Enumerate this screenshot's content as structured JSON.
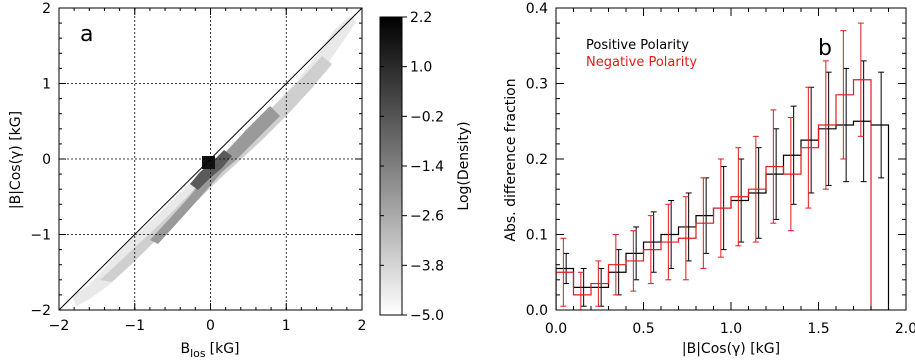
{
  "chart_data": [
    {
      "type": "heatmap",
      "panel_label": "a",
      "xlabel_main": "B",
      "xlabel_sub": "los",
      "xlabel_unit": "[kG]",
      "ylabel": "|B|Cos(γ) [kG]",
      "xlim": [
        -2,
        2
      ],
      "ylim": [
        -2,
        2
      ],
      "xticks": [
        -2,
        -1,
        0,
        1,
        2
      ],
      "yticks": [
        -2,
        -1,
        0,
        1,
        2
      ],
      "xtick_labels": [
        "−2",
        "−1",
        "0",
        "1",
        "2"
      ],
      "ytick_labels": [
        "−2",
        "−1",
        "0",
        "1",
        "2"
      ],
      "grid": "dotted",
      "reference_line": "y = x",
      "density_description": "Joint density concentrated along the diagonal with a dark core near (−0.05, −0.05)",
      "colorbar": {
        "label": "Log(Density)",
        "range": [
          -5.0,
          2.2
        ],
        "tick_labels": [
          "2.2",
          "1.0",
          "−0.2",
          "−1.4",
          "−2.6",
          "−3.8",
          "−5.0"
        ],
        "tick_values": [
          2.2,
          1.0,
          -0.2,
          -1.4,
          -2.6,
          -3.8,
          -5.0
        ],
        "colors": [
          "#ffffff",
          "#000000"
        ]
      }
    },
    {
      "type": "line",
      "style": "step-histogram-with-errorbars",
      "panel_label": "b",
      "xlabel": "|B|Cos(γ) [kG]",
      "ylabel": "Abs. difference fraction",
      "xlim": [
        0.0,
        2.0
      ],
      "ylim": [
        0.0,
        0.4
      ],
      "xticks": [
        0.0,
        0.5,
        1.0,
        1.5,
        2.0
      ],
      "yticks": [
        0.0,
        0.1,
        0.2,
        0.3,
        0.4
      ],
      "xtick_labels": [
        "0.0",
        "0.5",
        "1.0",
        "1.5",
        "2.0"
      ],
      "ytick_labels": [
        "0.0",
        "0.1",
        "0.2",
        "0.3",
        "0.4"
      ],
      "legend_position": "top-left",
      "bin_edges": [
        0.0,
        0.1,
        0.2,
        0.3,
        0.4,
        0.5,
        0.6,
        0.7,
        0.8,
        0.9,
        1.0,
        1.1,
        1.2,
        1.3,
        1.4,
        1.5,
        1.6,
        1.7,
        1.8,
        1.9
      ],
      "series": [
        {
          "name": "Positive Polarity",
          "color": "#000000",
          "bin_centers": [
            0.05,
            0.15,
            0.25,
            0.35,
            0.45,
            0.55,
            0.65,
            0.75,
            0.85,
            0.95,
            1.05,
            1.15,
            1.25,
            1.35,
            1.45,
            1.55,
            1.65,
            1.75,
            1.85
          ],
          "values": [
            0.055,
            0.03,
            0.03,
            0.05,
            0.075,
            0.09,
            0.1,
            0.11,
            0.125,
            0.135,
            0.145,
            0.155,
            0.18,
            0.205,
            0.225,
            0.24,
            0.245,
            0.25,
            0.245
          ],
          "errors": [
            0.02,
            0.025,
            0.025,
            0.03,
            0.035,
            0.04,
            0.045,
            0.045,
            0.05,
            0.055,
            0.055,
            0.06,
            0.06,
            0.065,
            0.07,
            0.075,
            0.075,
            0.08,
            0.07
          ],
          "end_value": 0.0
        },
        {
          "name": "Negative Polarity",
          "color": "#e41a1c",
          "bin_centers": [
            0.05,
            0.15,
            0.25,
            0.35,
            0.45,
            0.55,
            0.65,
            0.75,
            0.85,
            0.95,
            1.05,
            1.15,
            1.25,
            1.35,
            1.45,
            1.55,
            1.65,
            1.75,
            1.85
          ],
          "values": [
            0.05,
            0.02,
            0.035,
            0.06,
            0.065,
            0.08,
            0.09,
            0.095,
            0.115,
            0.135,
            0.15,
            0.16,
            0.19,
            0.18,
            0.215,
            0.245,
            0.285,
            0.305,
            0.0
          ],
          "errors": [
            0.045,
            0.03,
            0.03,
            0.04,
            0.04,
            0.045,
            0.05,
            0.055,
            0.06,
            0.065,
            0.065,
            0.07,
            0.075,
            0.075,
            0.08,
            0.085,
            0.085,
            0.075,
            0.0
          ]
        }
      ]
    }
  ]
}
